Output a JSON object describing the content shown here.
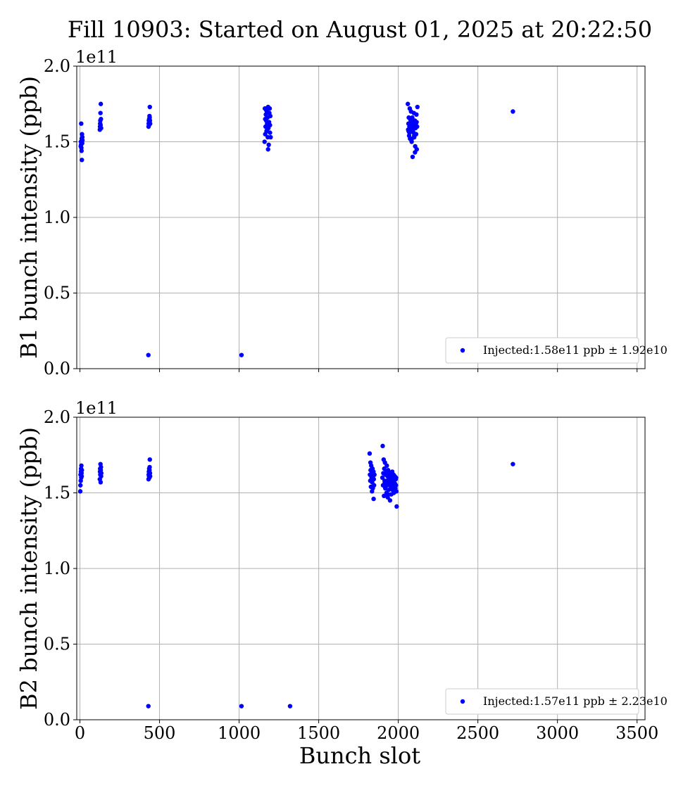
{
  "figure": {
    "title": "Fill 10903: Started on August 01, 2025 at 20:22:50",
    "xlabel": "Bunch slot",
    "marker_color": "#0000ff"
  },
  "chart_data": [
    {
      "type": "scatter",
      "name": "B1",
      "ylabel": "B1 bunch intensity (ppb)",
      "y_offset_label": "1e11",
      "xlim": [
        -20,
        3550
      ],
      "ylim": [
        0,
        2.0
      ],
      "xticks": [
        0,
        500,
        1000,
        1500,
        2000,
        2500,
        3000,
        3500
      ],
      "xtick_labels": [],
      "yticks": [
        0.0,
        0.5,
        1.0,
        1.5,
        2.0
      ],
      "ytick_labels": [
        "0.0",
        "0.5",
        "1.0",
        "1.5",
        "2.0"
      ],
      "grid": true,
      "legend_position": "lower-right",
      "legend_label": "Injected:1.58e11 ppb ± 1.92e10",
      "x": [
        5,
        6,
        7,
        8,
        9,
        10,
        11,
        12,
        13,
        14,
        15,
        16,
        125,
        126,
        127,
        128,
        129,
        130,
        131,
        132,
        133,
        430,
        431,
        432,
        433,
        434,
        435,
        436,
        437,
        438,
        439,
        440,
        441,
        1015,
        1160,
        1162,
        1164,
        1166,
        1168,
        1170,
        1172,
        1174,
        1176,
        1178,
        1180,
        1182,
        1184,
        1186,
        1188,
        1190,
        1192,
        1194,
        1196,
        1198,
        1164,
        1170,
        1176,
        1182,
        1188,
        1194,
        2060,
        2062,
        2064,
        2066,
        2068,
        2070,
        2072,
        2074,
        2076,
        2078,
        2080,
        2082,
        2084,
        2086,
        2088,
        2090,
        2092,
        2094,
        2096,
        2098,
        2100,
        2102,
        2104,
        2106,
        2108,
        2110,
        2112,
        2114,
        2116,
        2118,
        2120,
        2065,
        2075,
        2085,
        2095,
        2105,
        2115,
        2070,
        2080,
        2090,
        2100,
        2110,
        2720
      ],
      "y": [
        1.47,
        1.5,
        1.48,
        1.62,
        1.46,
        1.44,
        1.52,
        1.38,
        1.55,
        1.49,
        1.53,
        1.51,
        1.58,
        1.6,
        1.62,
        1.64,
        1.69,
        1.61,
        1.75,
        1.65,
        1.59,
        0.09,
        1.6,
        1.62,
        1.64,
        1.61,
        1.65,
        1.63,
        1.67,
        1.66,
        1.73,
        1.64,
        1.62,
        0.09,
        1.5,
        1.72,
        1.55,
        1.6,
        1.68,
        1.64,
        1.57,
        1.7,
        1.62,
        1.66,
        1.53,
        1.73,
        1.59,
        1.48,
        1.61,
        1.69,
        1.72,
        1.56,
        1.67,
        1.53,
        1.65,
        1.71,
        1.58,
        1.45,
        1.63,
        1.61,
        1.75,
        1.58,
        1.62,
        1.66,
        1.54,
        1.6,
        1.72,
        1.52,
        1.59,
        1.64,
        1.57,
        1.63,
        1.5,
        1.61,
        1.66,
        1.4,
        1.58,
        1.62,
        1.56,
        1.69,
        1.53,
        1.6,
        1.64,
        1.47,
        1.59,
        1.62,
        1.55,
        1.68,
        1.45,
        1.6,
        1.73,
        1.57,
        1.65,
        1.52,
        1.61,
        1.43,
        1.63,
        1.56,
        1.7,
        1.58,
        1.54,
        1.62,
        1.7
      ]
    },
    {
      "type": "scatter",
      "name": "B2",
      "ylabel": "B2 bunch intensity (ppb)",
      "y_offset_label": "1e11",
      "xlim": [
        -20,
        3550
      ],
      "ylim": [
        0,
        2.0
      ],
      "xticks": [
        0,
        500,
        1000,
        1500,
        2000,
        2500,
        3000,
        3500
      ],
      "xtick_labels": [
        "0",
        "500",
        "1000",
        "1500",
        "2000",
        "2500",
        "3000",
        "3500"
      ],
      "yticks": [
        0.0,
        0.5,
        1.0,
        1.5,
        2.0
      ],
      "ytick_labels": [
        "0.0",
        "0.5",
        "1.0",
        "1.5",
        "2.0"
      ],
      "grid": true,
      "legend_position": "lower-right",
      "legend_label": "Injected:1.57e11 ppb ± 2.23e10",
      "x": [
        2,
        3,
        4,
        5,
        6,
        7,
        8,
        9,
        10,
        11,
        12,
        125,
        126,
        127,
        128,
        129,
        130,
        131,
        132,
        133,
        134,
        430,
        431,
        432,
        433,
        434,
        435,
        436,
        437,
        438,
        439,
        440,
        441,
        1015,
        1320,
        1820,
        1822,
        1824,
        1826,
        1828,
        1830,
        1832,
        1834,
        1836,
        1838,
        1840,
        1842,
        1844,
        1846,
        1848,
        1850,
        1825,
        1835,
        1845,
        1900,
        1902,
        1904,
        1906,
        1908,
        1910,
        1912,
        1914,
        1916,
        1918,
        1920,
        1922,
        1924,
        1926,
        1928,
        1930,
        1932,
        1934,
        1936,
        1938,
        1940,
        1942,
        1944,
        1946,
        1948,
        1950,
        1952,
        1954,
        1956,
        1958,
        1960,
        1962,
        1964,
        1966,
        1968,
        1970,
        1972,
        1974,
        1976,
        1978,
        1980,
        1982,
        1984,
        1986,
        1988,
        1990,
        1915,
        1925,
        1935,
        1945,
        1955,
        1965,
        1975,
        1985,
        2720
      ],
      "y": [
        1.51,
        1.55,
        1.62,
        1.58,
        1.64,
        1.66,
        1.6,
        1.68,
        1.63,
        1.61,
        1.65,
        1.59,
        1.64,
        1.66,
        1.62,
        1.69,
        1.57,
        1.65,
        1.67,
        1.61,
        1.63,
        0.09,
        1.59,
        1.62,
        1.64,
        1.61,
        1.66,
        1.6,
        1.65,
        1.67,
        1.72,
        1.63,
        1.61,
        0.09,
        0.09,
        1.76,
        1.62,
        1.58,
        1.65,
        1.54,
        1.68,
        1.6,
        1.63,
        1.57,
        1.66,
        1.53,
        1.61,
        1.64,
        1.59,
        1.55,
        1.62,
        1.7,
        1.51,
        1.46,
        1.6,
        1.81,
        1.55,
        1.63,
        1.72,
        1.48,
        1.66,
        1.58,
        1.7,
        1.53,
        1.62,
        1.57,
        1.64,
        1.5,
        1.68,
        1.55,
        1.61,
        1.47,
        1.65,
        1.59,
        1.52,
        1.63,
        1.56,
        1.6,
        1.45,
        1.58,
        1.62,
        1.54,
        1.49,
        1.61,
        1.57,
        1.64,
        1.52,
        1.59,
        1.55,
        1.62,
        1.5,
        1.58,
        1.54,
        1.61,
        1.56,
        1.53,
        1.59,
        1.6,
        1.51,
        1.41,
        1.57,
        1.64,
        1.49,
        1.58,
        1.62,
        1.54,
        1.6,
        1.55,
        1.69
      ]
    }
  ]
}
